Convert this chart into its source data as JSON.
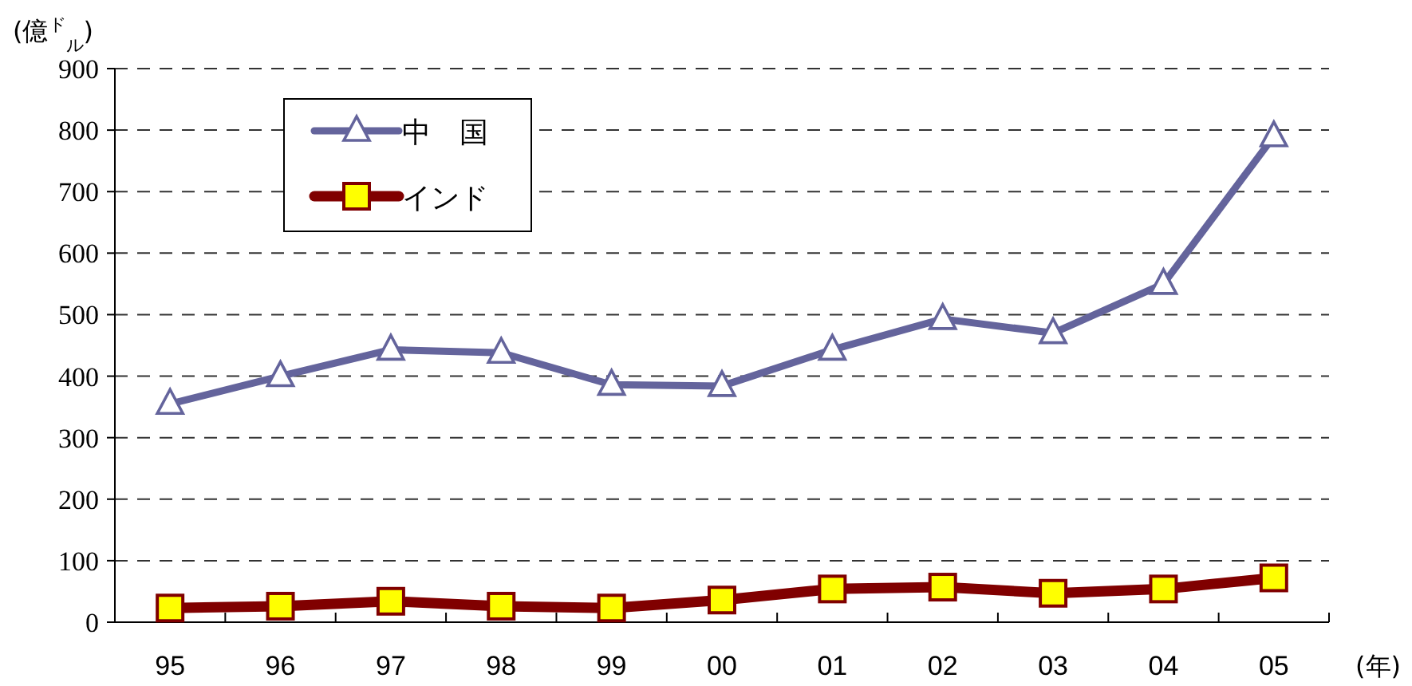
{
  "chart_data": {
    "type": "line",
    "ylabel": "(億$^{ド}$$_{ル}$)",
    "xlabel": "(年)",
    "categories": [
      "95",
      "96",
      "97",
      "98",
      "99",
      "00",
      "01",
      "02",
      "03",
      "04",
      "05"
    ],
    "series": [
      {
        "name": "中　国",
        "color": "#64649c",
        "marker": "triangle",
        "values": [
          355,
          400,
          443,
          438,
          386,
          384,
          443,
          493,
          470,
          550,
          790
        ]
      },
      {
        "name": "インド",
        "color": "#800000",
        "marker": "square",
        "values": [
          23,
          26,
          34,
          26,
          23,
          36,
          54,
          57,
          47,
          54,
          72
        ]
      }
    ],
    "ylim": [
      0,
      900
    ],
    "yticks": [
      0,
      100,
      200,
      300,
      400,
      500,
      600,
      700,
      800,
      900
    ],
    "grid": "y",
    "legend": "top left",
    "line_style": "solid"
  }
}
